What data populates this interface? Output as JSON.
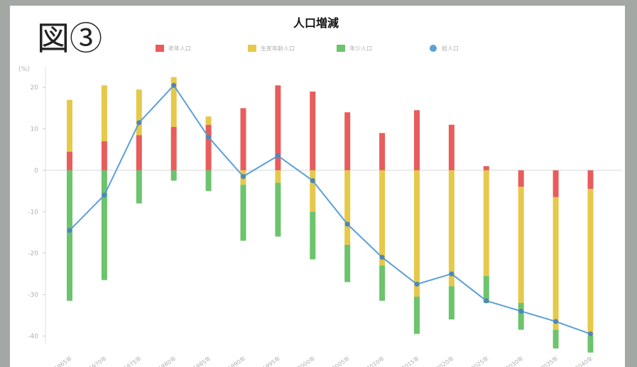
{
  "figure_label": "図③",
  "chart_data": {
    "type": "bar",
    "stacked": true,
    "overlay": "line",
    "title": "人口増減",
    "y_unit_label": "(%)",
    "ylim": [
      -42,
      25
    ],
    "yticks": [
      20,
      10,
      0,
      -10,
      -20,
      -30,
      -40
    ],
    "grid": false,
    "legend_position": "top",
    "categories": [
      "1965年",
      "1970年",
      "1975年",
      "1980年",
      "1985年",
      "1990年",
      "1995年",
      "2000年",
      "2005年",
      "2010年",
      "2015年",
      "2020年",
      "2025年",
      "2030年",
      "2035年",
      "2040年"
    ],
    "series": [
      {
        "name": "老年人口",
        "kind": "bar",
        "color": "#e85c5c",
        "values": [
          4.5,
          7.0,
          8.5,
          10.5,
          11.0,
          15.0,
          20.5,
          19.0,
          14.0,
          9.0,
          14.5,
          11.0,
          1.0,
          -4.0,
          -6.5,
          -4.5
        ]
      },
      {
        "name": "生産年齢人口",
        "kind": "bar",
        "color": "#e6c94a",
        "values": [
          12.5,
          13.5,
          11.0,
          12.0,
          2.0,
          -3.5,
          -3.0,
          -10.0,
          -18.0,
          -23.0,
          -30.5,
          -28.0,
          -25.5,
          -28.0,
          -32.0,
          -35.5
        ]
      },
      {
        "name": "年少人口",
        "kind": "bar",
        "color": "#6cc46c",
        "values": [
          -31.5,
          -26.5,
          -8.0,
          -2.5,
          -5.0,
          -13.5,
          -13.0,
          -11.5,
          -9.0,
          -8.5,
          -9.0,
          -8.0,
          -6.5,
          -6.5,
          -4.5,
          -4.0
        ]
      },
      {
        "name": "総人口",
        "kind": "line",
        "color": "#5aa0d8",
        "values": [
          -14.5,
          -6.0,
          11.5,
          20.5,
          8.0,
          -1.5,
          3.5,
          -2.5,
          -13.0,
          -21.0,
          -27.5,
          -25.0,
          -31.5,
          -34.0,
          -36.5,
          -39.5
        ]
      }
    ]
  }
}
